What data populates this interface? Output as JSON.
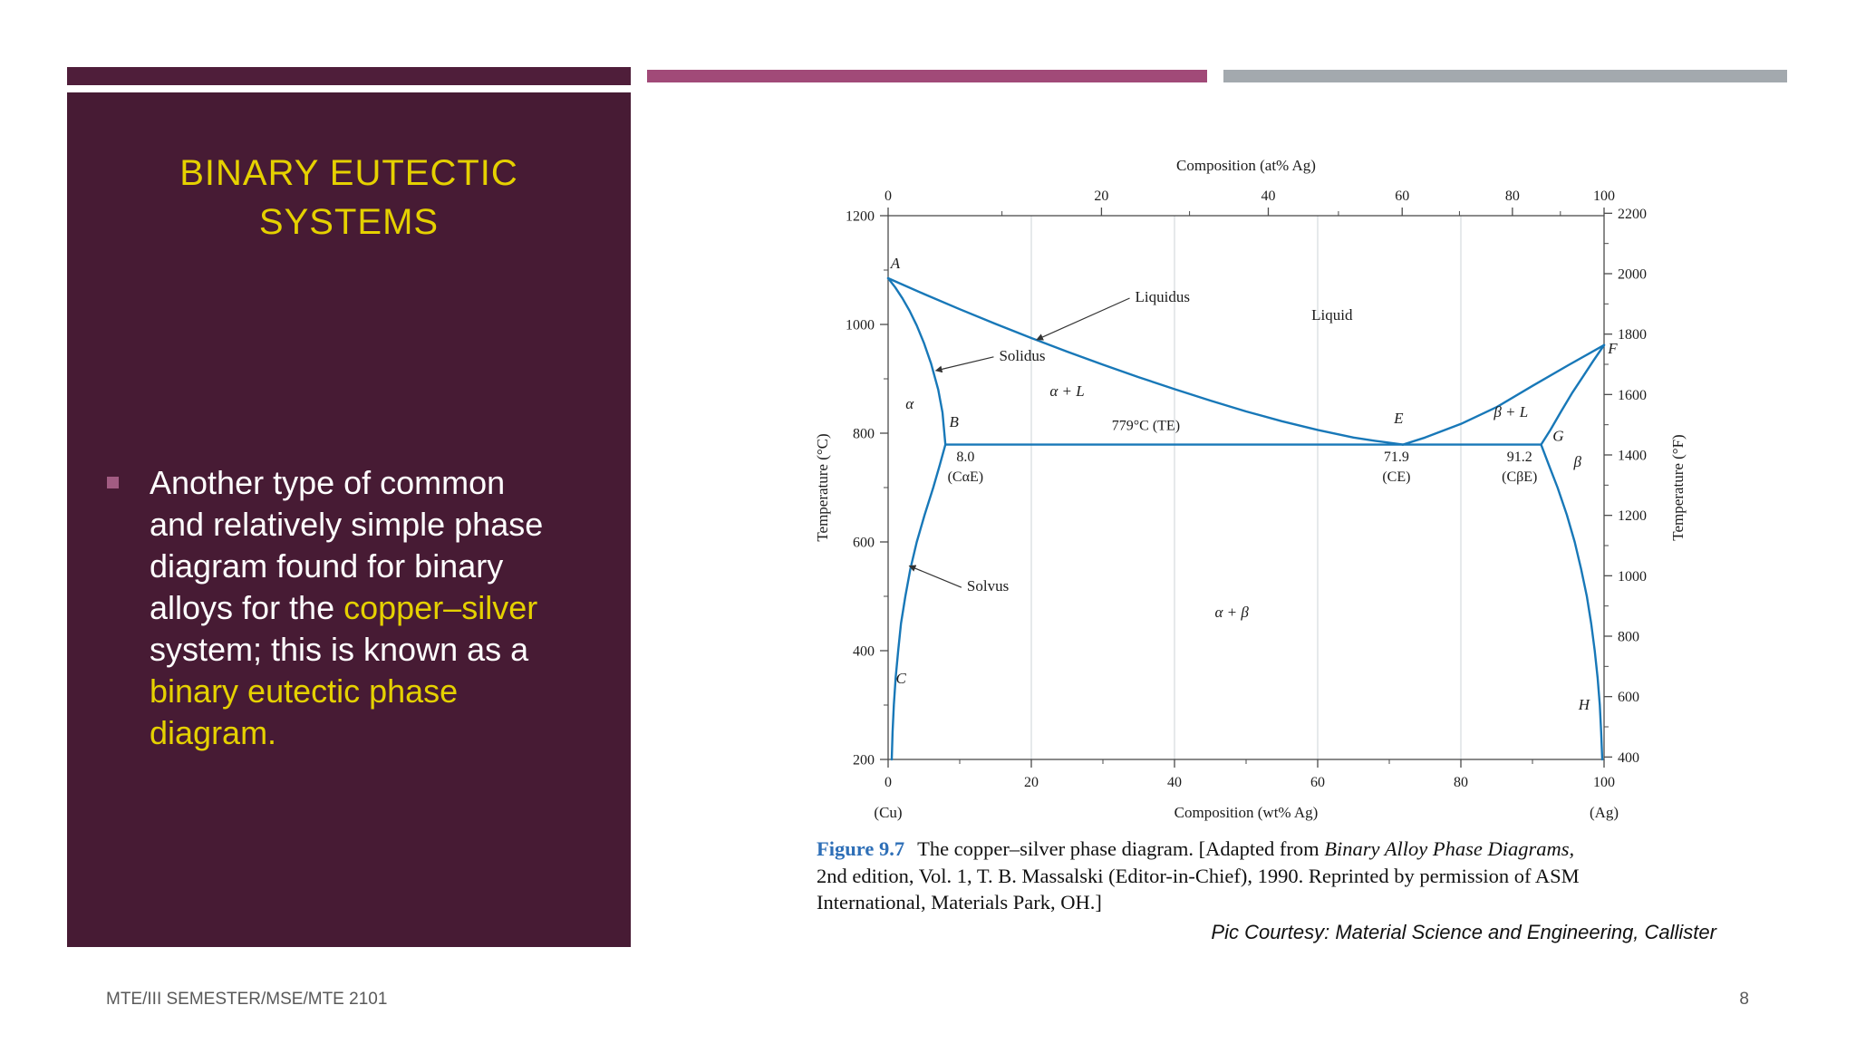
{
  "slide": {
    "title": "BINARY EUTECTIC SYSTEMS",
    "bullet": {
      "segments": [
        {
          "text": "Another type of common and relatively simple phase diagram found for binary alloys for the "
        },
        {
          "text": "copper–silver",
          "highlight": true
        },
        {
          "text": " system; this is known as a "
        },
        {
          "text": "binary eutectic phase diagram.",
          "highlight": true
        }
      ]
    },
    "caption": {
      "label": "Figure 9.7",
      "seg1": "The copper–silver phase diagram. [Adapted from ",
      "seg2_italic": "Binary Alloy Phase Diagrams,",
      "seg3": " 2nd edition, Vol. 1, T. B. Massalski (Editor-in-Chief), 1990. Reprinted by permission of ASM International, Materials Park, OH.]"
    },
    "courtesy": "Pic Courtesy: Material Science and Engineering, Callister",
    "footer_left": "MTE/III SEMESTER/MSE/MTE 2101",
    "page_number": "8"
  },
  "colors": {
    "maroon-panel": "#471b34",
    "maroon-bar": "#4f1e3a",
    "pink-bar": "#a14a78",
    "gray-bar": "#a3a9ae",
    "accent-yellow": "#e5d100",
    "bullet-marker": "#a25c82",
    "footer-gray": "#595959",
    "caption-blue": "#2e6fb7"
  },
  "chart_data": {
    "type": "line",
    "description": "Copper–silver binary eutectic phase diagram",
    "line_color": "#1878b8",
    "x_wt_range": [
      0,
      100
    ],
    "temp_c_range": [
      200,
      1200
    ],
    "gridlines_wt": [
      20,
      40,
      60,
      80
    ],
    "axes": {
      "top": {
        "label": "Composition (at% Ag)",
        "ticks": [
          "0",
          "20",
          "40",
          "60",
          "80",
          "100"
        ],
        "tick_wt_positions": [
          0,
          29.8,
          53.1,
          71.8,
          87.2,
          100
        ],
        "minor_wt_positions": [
          15.9,
          42.1,
          62.9,
          79.8,
          93.9
        ]
      },
      "bottom": {
        "label": "Composition (wt% Ag)",
        "ticks": [
          "0",
          "20",
          "40",
          "60",
          "80",
          "100"
        ],
        "tick_wt_positions": [
          0,
          20,
          40,
          60,
          80,
          100
        ],
        "minor_wt_positions": [
          10,
          30,
          50,
          70,
          90
        ],
        "left_end_label": "(Cu)",
        "right_end_label": "(Ag)"
      },
      "left": {
        "label": "Temperature (°C)",
        "ticks": [
          "200",
          "400",
          "600",
          "800",
          "1000",
          "1200"
        ],
        "tick_values": [
          200,
          400,
          600,
          800,
          1000,
          1200
        ],
        "minor_values": [
          300,
          500,
          700,
          900,
          1100
        ]
      },
      "right": {
        "label": "Temperature (°F)",
        "ticks": [
          "400",
          "600",
          "800",
          "1000",
          "1200",
          "1400",
          "1600",
          "1800",
          "2000",
          "2200"
        ],
        "tick_values_f": [
          400,
          600,
          800,
          1000,
          1200,
          1400,
          1600,
          1800,
          2000,
          2200
        ],
        "minor_values_f": [
          500,
          700,
          900,
          1100,
          1300,
          1500,
          1700,
          1900,
          2100
        ]
      }
    },
    "invariant_points": {
      "eutectic_temperature_c": 779,
      "eutectic_composition_wt_ag": 71.9,
      "alpha_max_solubility_wt_ag": 8.0,
      "beta_boundary_wt_ag": 91.2
    },
    "curves": [
      {
        "name": "liquidus-left",
        "points": [
          [
            0,
            1085
          ],
          [
            5,
            1056
          ],
          [
            10,
            1028
          ],
          [
            15,
            1001
          ],
          [
            20,
            975
          ],
          [
            25,
            950
          ],
          [
            30,
            926
          ],
          [
            35,
            903
          ],
          [
            40,
            881
          ],
          [
            45,
            860
          ],
          [
            50,
            840
          ],
          [
            55,
            822
          ],
          [
            60,
            806
          ],
          [
            65,
            792
          ],
          [
            68,
            786
          ],
          [
            71.9,
            779
          ]
        ]
      },
      {
        "name": "solidus-left",
        "points": [
          [
            0,
            1085
          ],
          [
            1,
            1068
          ],
          [
            2,
            1048
          ],
          [
            3,
            1025
          ],
          [
            4,
            998
          ],
          [
            5,
            966
          ],
          [
            6,
            928
          ],
          [
            7,
            880
          ],
          [
            7.6,
            838
          ],
          [
            8,
            779
          ]
        ]
      },
      {
        "name": "solvus-alpha",
        "points": [
          [
            8,
            779
          ],
          [
            7.2,
            741
          ],
          [
            6.3,
            700
          ],
          [
            5.1,
            650
          ],
          [
            4,
            600
          ],
          [
            3.1,
            550
          ],
          [
            2.4,
            500
          ],
          [
            1.8,
            450
          ],
          [
            1.4,
            400
          ],
          [
            1.05,
            350
          ],
          [
            0.8,
            300
          ],
          [
            0.62,
            250
          ],
          [
            0.5,
            200
          ]
        ]
      },
      {
        "name": "eutectic-isotherm",
        "points": [
          [
            8,
            779
          ],
          [
            91.2,
            779
          ]
        ]
      },
      {
        "name": "liquidus-right",
        "points": [
          [
            71.9,
            779
          ],
          [
            75,
            792
          ],
          [
            80,
            817
          ],
          [
            85,
            848
          ],
          [
            90,
            887
          ],
          [
            95,
            925
          ],
          [
            100,
            962
          ]
        ]
      },
      {
        "name": "solidus-right",
        "points": [
          [
            91.2,
            779
          ],
          [
            92.5,
            806
          ],
          [
            94,
            840
          ],
          [
            95.5,
            873
          ],
          [
            97,
            903
          ],
          [
            98.5,
            933
          ],
          [
            100,
            962
          ]
        ]
      },
      {
        "name": "solvus-beta",
        "points": [
          [
            91.2,
            779
          ],
          [
            92.3,
            741
          ],
          [
            93.5,
            700
          ],
          [
            94.8,
            650
          ],
          [
            95.9,
            600
          ],
          [
            96.8,
            550
          ],
          [
            97.6,
            500
          ],
          [
            98.2,
            450
          ],
          [
            98.7,
            400
          ],
          [
            99.1,
            350
          ],
          [
            99.4,
            300
          ],
          [
            99.6,
            250
          ],
          [
            99.75,
            200
          ]
        ]
      }
    ],
    "point_labels": [
      {
        "text": "A",
        "wt": 1.0,
        "t": 1103
      },
      {
        "text": "B",
        "wt": 9.2,
        "t": 812
      },
      {
        "text": "C",
        "wt": 1.8,
        "t": 340
      },
      {
        "text": "E",
        "wt": 71.3,
        "t": 818
      },
      {
        "text": "F",
        "wt": 101.2,
        "t": 947
      },
      {
        "text": "G",
        "wt": 93.6,
        "t": 786
      },
      {
        "text": "H",
        "wt": 97.2,
        "t": 292
      }
    ],
    "region_labels": [
      {
        "text": "α",
        "wt": 3,
        "t": 845,
        "italic": true
      },
      {
        "text": "α + L",
        "wt": 25,
        "t": 868,
        "italic": true
      },
      {
        "text": "Liquid",
        "wt": 62,
        "t": 1008,
        "italic": false
      },
      {
        "text": "β + L",
        "wt": 87,
        "t": 830,
        "italic": true
      },
      {
        "text": "β",
        "wt": 96.3,
        "t": 738,
        "italic": true
      },
      {
        "text": "α + β",
        "wt": 48,
        "t": 462,
        "italic": true
      }
    ],
    "value_labels": [
      {
        "text": "779°C (TE)",
        "wt": 36,
        "t": 806
      },
      {
        "text": "8.0",
        "wt": 10.8,
        "t": 748
      },
      {
        "text": "(CαE)",
        "wt": 10.8,
        "t": 712
      },
      {
        "text": "71.9",
        "wt": 71,
        "t": 748
      },
      {
        "text": "(CE)",
        "wt": 71,
        "t": 712
      },
      {
        "text": "91.2",
        "wt": 88.2,
        "t": 748
      },
      {
        "text": "(CβE)",
        "wt": 88.2,
        "t": 712
      }
    ],
    "callouts": [
      {
        "text": "Liquidus",
        "wt": 34.5,
        "t": 1050,
        "tip_wt": 20.5,
        "tip_t": 972
      },
      {
        "text": "Solidus",
        "wt": 15.5,
        "t": 942,
        "tip_wt": 6.4,
        "tip_t": 915
      },
      {
        "text": "Solvus",
        "wt": 11,
        "t": 518,
        "tip_wt": 2.7,
        "tip_t": 556
      }
    ]
  }
}
